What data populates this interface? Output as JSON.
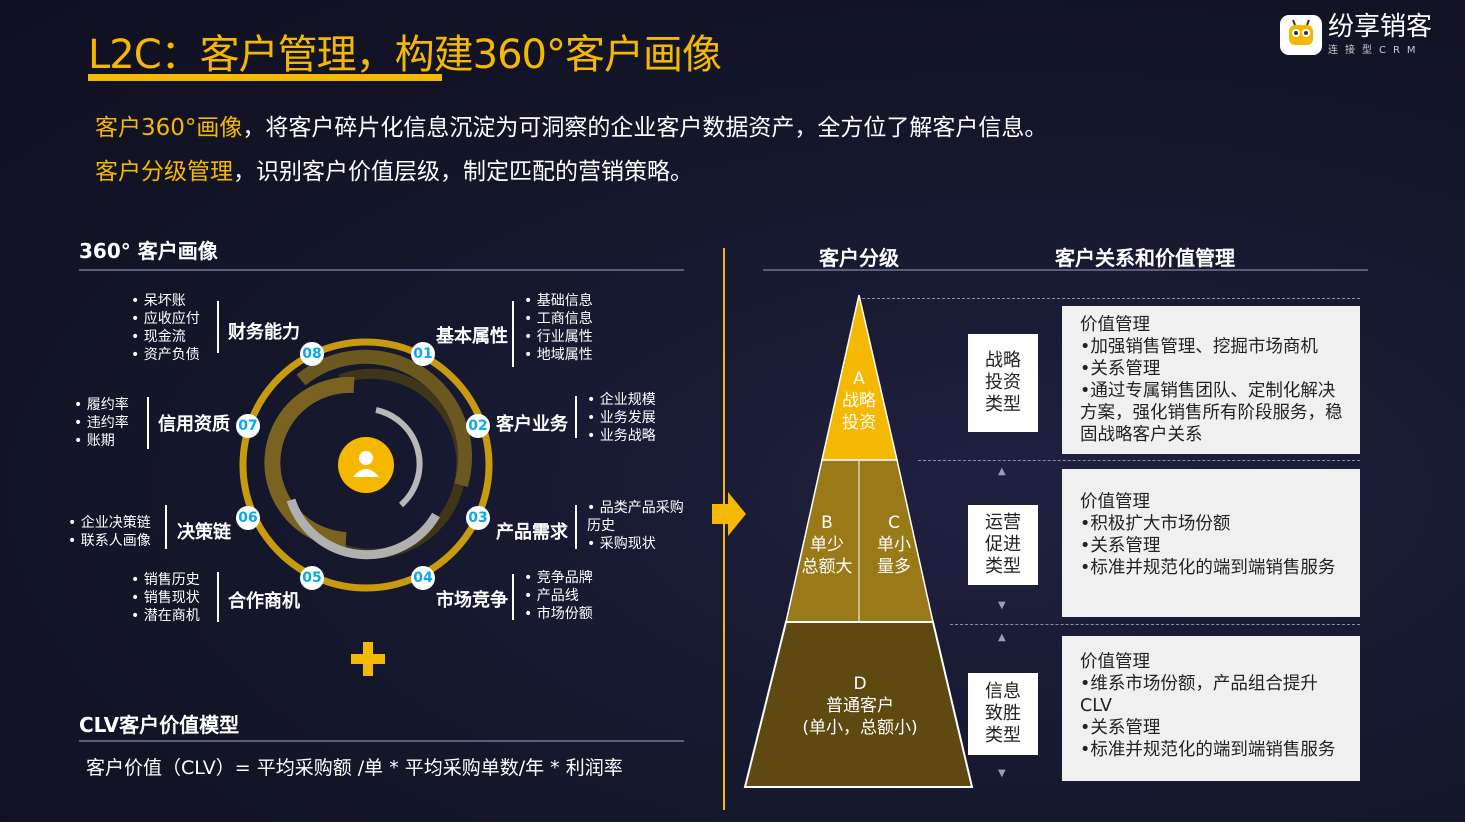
{
  "title": "L2C：客户管理，构建360°客户画像",
  "logo": {
    "name": "纷享销客",
    "sub": "连接型CRM"
  },
  "intro": [
    {
      "highlight": "客户360°画像",
      "text": "，将客户碎片化信息沉淀为可洞察的企业客户数据资产，全方位了解客户信息。"
    },
    {
      "highlight": "客户分级管理",
      "text": "，识别客户价值层级，制定匹配的营销策略。"
    }
  ],
  "portrait": {
    "title": "360° 客户画像",
    "segments": [
      {
        "num": "01",
        "label": "基本属性",
        "items": [
          "基础信息",
          "工商信息",
          "行业属性",
          "地域属性"
        ]
      },
      {
        "num": "02",
        "label": "客户业务",
        "items": [
          "企业规模",
          "业务发展",
          "业务战略"
        ]
      },
      {
        "num": "03",
        "label": "产品需求",
        "items": [
          "品类产品采购历史",
          "采购现状"
        ]
      },
      {
        "num": "04",
        "label": "市场竞争",
        "items": [
          "竞争品牌",
          "产品线",
          "市场份额"
        ]
      },
      {
        "num": "05",
        "label": "合作商机",
        "items": [
          "销售历史",
          "销售现状",
          "潜在商机"
        ]
      },
      {
        "num": "06",
        "label": "决策链",
        "items": [
          "企业决策链",
          "联系人画像"
        ]
      },
      {
        "num": "07",
        "label": "信用资质",
        "items": [
          "履约率",
          "违约率",
          "账期"
        ]
      },
      {
        "num": "08",
        "label": "财务能力",
        "items": [
          "呆坏账",
          "应收应付",
          "现金流",
          "资产负债"
        ]
      }
    ]
  },
  "clv": {
    "title": "CLV客户价值模型",
    "formula": "客户价值（CLV）= 平均采购额 /单 * 平均采购单数/年 * 利润率"
  },
  "grading": {
    "title": "客户分级",
    "mgmt_title": "客户关系和价值管理",
    "tiers": [
      {
        "letter": "A",
        "name": "战略\n投资",
        "type": "战略\n投资\n类型",
        "desc": [
          "价值管理",
          "•加强销售管理、挖掘市场商机",
          "•关系管理",
          "•通过专属销售团队、定制化解决方案，强化销售所有阶段服务，稳固战略客户关系"
        ]
      },
      {
        "letter_b": "B",
        "name_b": "单少\n总额大",
        "letter_c": "C",
        "name_c": "单小\n量多",
        "type": "运营\n促进\n类型",
        "desc": [
          "价值管理",
          "•积极扩大市场份额",
          "•关系管理",
          "•标准并规范化的端到端销售服务"
        ]
      },
      {
        "letter": "D",
        "name": "普通客户\n(单小，总额小)",
        "type": "信息\n致胜\n类型",
        "desc": [
          "价值管理",
          "•维系市场份额，产品组合提升CLV",
          "•关系管理",
          "•标准并规范化的端到端销售服务"
        ]
      }
    ]
  },
  "colors": {
    "accent": "#f5b800",
    "badge_text": "#0aa6ee"
  }
}
